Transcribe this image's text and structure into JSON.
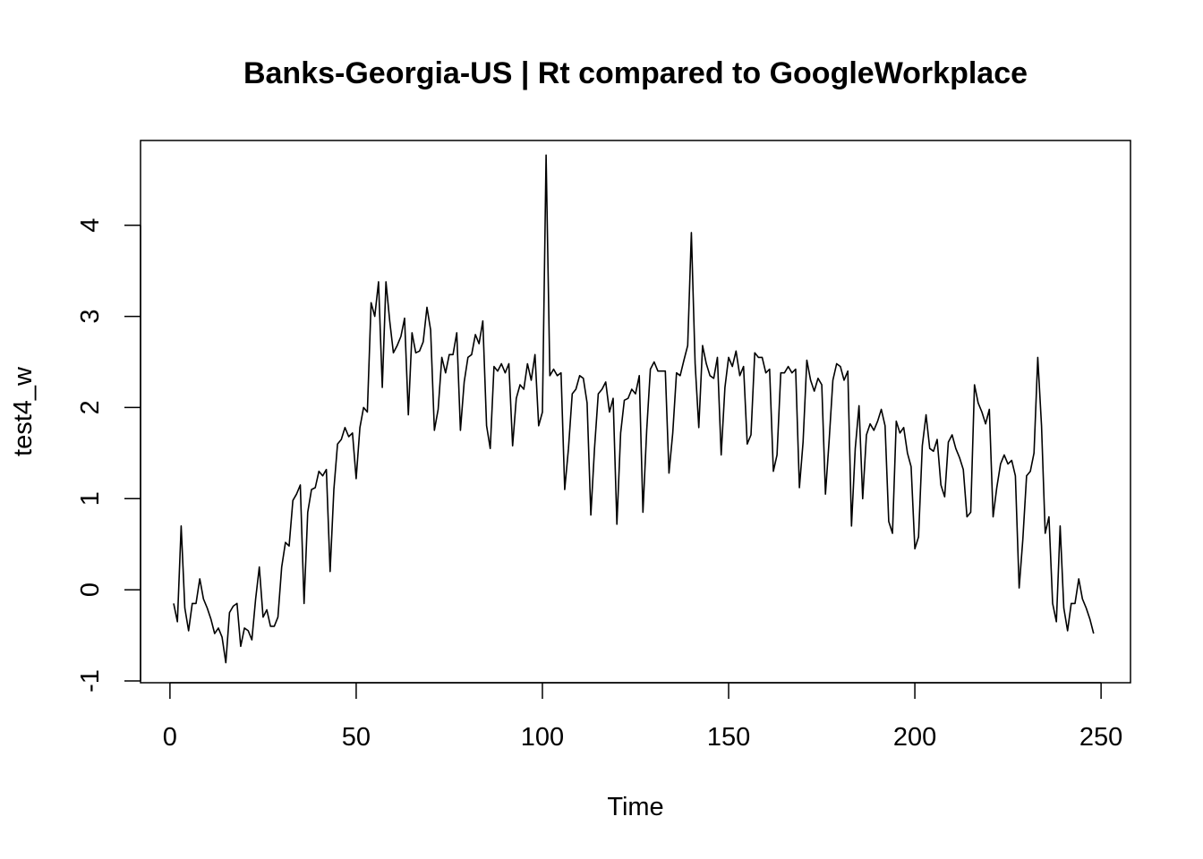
{
  "chart_data": {
    "type": "line",
    "title": "Banks-Georgia-US | Rt compared to GoogleWorkplace",
    "xlabel": "Time",
    "ylabel": "test4_w",
    "xlim": [
      -7.9,
      257.9
    ],
    "ylim": [
      -1.02,
      4.93
    ],
    "xticks": [
      0,
      50,
      100,
      150,
      200,
      250
    ],
    "yticks": [
      -1,
      0,
      1,
      2,
      3,
      4
    ],
    "grid": false,
    "legend": "none",
    "line_color": "#000000",
    "series": [
      {
        "x": [
          1,
          2,
          3,
          4,
          5,
          6,
          7,
          8,
          9,
          10,
          11,
          12,
          13,
          14,
          15,
          16,
          17,
          18,
          19,
          20,
          21,
          22,
          23,
          24,
          25,
          26,
          27,
          28,
          29,
          30,
          31,
          32,
          33,
          34,
          35,
          36,
          37,
          38,
          39,
          40,
          41,
          42,
          43,
          44,
          45,
          46,
          47,
          48,
          49,
          50,
          51,
          52,
          53,
          54,
          55,
          56,
          57,
          58,
          59,
          60,
          61,
          62,
          63,
          64,
          65,
          66,
          67,
          68,
          69,
          70,
          71,
          72,
          73,
          74,
          75,
          76,
          77,
          78,
          79,
          80,
          81,
          82,
          83,
          84,
          85,
          86,
          87,
          88,
          89,
          90,
          91,
          92,
          93,
          94,
          95,
          96,
          97,
          98,
          99,
          100,
          101,
          102,
          103,
          104,
          105,
          106,
          107,
          108,
          109,
          110,
          111,
          112,
          113,
          114,
          115,
          116,
          117,
          118,
          119,
          120,
          121,
          122,
          123,
          124,
          125,
          126,
          127,
          128,
          129,
          130,
          131,
          132,
          133,
          134,
          135,
          136,
          137,
          138,
          139,
          140,
          141,
          142,
          143,
          144,
          145,
          146,
          147,
          148,
          149,
          150,
          151,
          152,
          153,
          154,
          155,
          156,
          157,
          158,
          159,
          160,
          161,
          162,
          163,
          164,
          165,
          166,
          167,
          168,
          169,
          170,
          171,
          172,
          173,
          174,
          175,
          176,
          177,
          178,
          179,
          180,
          181,
          182,
          183,
          184,
          185,
          186,
          187,
          188,
          189,
          190,
          191,
          192,
          193,
          194,
          195,
          196,
          197,
          198,
          199,
          200,
          201,
          202,
          203,
          204,
          205,
          206,
          207,
          208,
          209,
          210,
          211,
          212,
          213,
          214,
          215,
          216,
          217,
          218,
          219,
          220,
          221,
          222,
          223,
          224,
          225,
          226,
          227,
          228,
          229,
          230,
          231,
          232,
          233,
          234,
          235,
          236,
          237,
          238,
          239,
          240,
          241,
          242,
          243,
          244,
          245,
          246,
          247,
          248
        ],
        "values": [
          -0.15,
          -0.35,
          0.7,
          -0.2,
          -0.45,
          -0.15,
          -0.15,
          0.12,
          -0.1,
          -0.2,
          -0.32,
          -0.48,
          -0.42,
          -0.52,
          -0.8,
          -0.25,
          -0.18,
          -0.15,
          -0.62,
          -0.42,
          -0.45,
          -0.55,
          -0.1,
          0.25,
          -0.3,
          -0.22,
          -0.4,
          -0.4,
          -0.3,
          0.25,
          0.52,
          0.48,
          0.98,
          1.05,
          1.15,
          -0.15,
          0.85,
          1.1,
          1.12,
          1.3,
          1.25,
          1.32,
          0.2,
          1.1,
          1.6,
          1.65,
          1.78,
          1.68,
          1.72,
          1.22,
          1.78,
          2.0,
          1.95,
          3.15,
          3.0,
          3.38,
          2.22,
          3.38,
          2.95,
          2.6,
          2.68,
          2.78,
          2.98,
          1.92,
          2.82,
          2.6,
          2.62,
          2.72,
          3.1,
          2.85,
          1.75,
          1.98,
          2.55,
          2.38,
          2.58,
          2.58,
          2.82,
          1.75,
          2.28,
          2.55,
          2.58,
          2.8,
          2.7,
          2.95,
          1.8,
          1.55,
          2.45,
          2.4,
          2.48,
          2.38,
          2.48,
          1.58,
          2.1,
          2.25,
          2.2,
          2.48,
          2.3,
          2.58,
          1.8,
          1.95,
          4.77,
          2.35,
          2.42,
          2.35,
          2.38,
          1.1,
          1.55,
          2.15,
          2.2,
          2.35,
          2.32,
          2.05,
          0.82,
          1.55,
          2.15,
          2.2,
          2.28,
          1.95,
          2.1,
          0.72,
          1.72,
          2.08,
          2.1,
          2.2,
          2.15,
          2.35,
          0.85,
          1.75,
          2.42,
          2.5,
          2.4,
          2.4,
          2.4,
          1.28,
          1.72,
          2.38,
          2.35,
          2.52,
          2.68,
          3.92,
          2.48,
          1.78,
          2.68,
          2.48,
          2.35,
          2.32,
          2.55,
          1.48,
          2.22,
          2.55,
          2.45,
          2.62,
          2.35,
          2.45,
          1.6,
          1.7,
          2.6,
          2.55,
          2.55,
          2.38,
          2.42,
          1.3,
          1.48,
          2.38,
          2.38,
          2.45,
          2.38,
          2.42,
          1.12,
          1.62,
          2.52,
          2.3,
          2.18,
          2.32,
          2.25,
          1.05,
          1.65,
          2.3,
          2.48,
          2.45,
          2.3,
          2.4,
          0.7,
          1.55,
          2.02,
          1.0,
          1.7,
          1.82,
          1.75,
          1.85,
          1.98,
          1.8,
          0.75,
          0.62,
          1.85,
          1.72,
          1.78,
          1.5,
          1.35,
          0.45,
          0.58,
          1.58,
          1.92,
          1.55,
          1.52,
          1.65,
          1.15,
          1.02,
          1.62,
          1.7,
          1.55,
          1.45,
          1.32,
          0.8,
          0.85,
          2.25,
          2.05,
          1.95,
          1.82,
          1.98,
          0.8,
          1.12,
          1.38,
          1.48,
          1.38,
          1.42,
          1.25,
          0.02,
          0.55,
          1.25,
          1.3,
          1.5,
          2.55,
          1.8,
          0.62,
          0.8,
          -0.15,
          -0.35,
          0.7,
          -0.2,
          -0.45,
          -0.15,
          -0.15,
          0.12,
          -0.1,
          -0.2,
          -0.32,
          -0.48
        ]
      }
    ]
  }
}
